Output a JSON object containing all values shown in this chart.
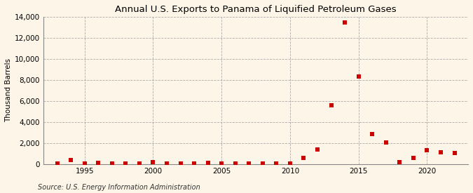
{
  "title": "Annual U.S. Exports to Panama of Liquified Petroleum Gases",
  "ylabel": "Thousand Barrels",
  "source": "Source: U.S. Energy Information Administration",
  "background_color": "#fdf6e8",
  "years": [
    1993,
    1994,
    1995,
    1996,
    1997,
    1998,
    1999,
    2000,
    2001,
    2002,
    2003,
    2004,
    2005,
    2006,
    2007,
    2008,
    2009,
    2010,
    2011,
    2012,
    2013,
    2014,
    2015,
    2016,
    2017,
    2018,
    2019,
    2020,
    2021,
    2022
  ],
  "values": [
    50,
    380,
    50,
    120,
    80,
    50,
    80,
    200,
    80,
    80,
    80,
    100,
    80,
    80,
    80,
    80,
    80,
    30,
    620,
    1380,
    5600,
    13450,
    8350,
    2850,
    2050,
    180,
    620,
    1320,
    1150,
    1050
  ],
  "marker_color": "#cc0000",
  "marker_size": 4,
  "ylim": [
    0,
    14000
  ],
  "yticks": [
    0,
    2000,
    4000,
    6000,
    8000,
    10000,
    12000,
    14000
  ],
  "xlim": [
    1992,
    2023
  ],
  "xticks": [
    1995,
    2000,
    2005,
    2010,
    2015,
    2020
  ],
  "grid_color": "#999999",
  "title_fontsize": 9.5,
  "axis_fontsize": 7.5,
  "source_fontsize": 7
}
